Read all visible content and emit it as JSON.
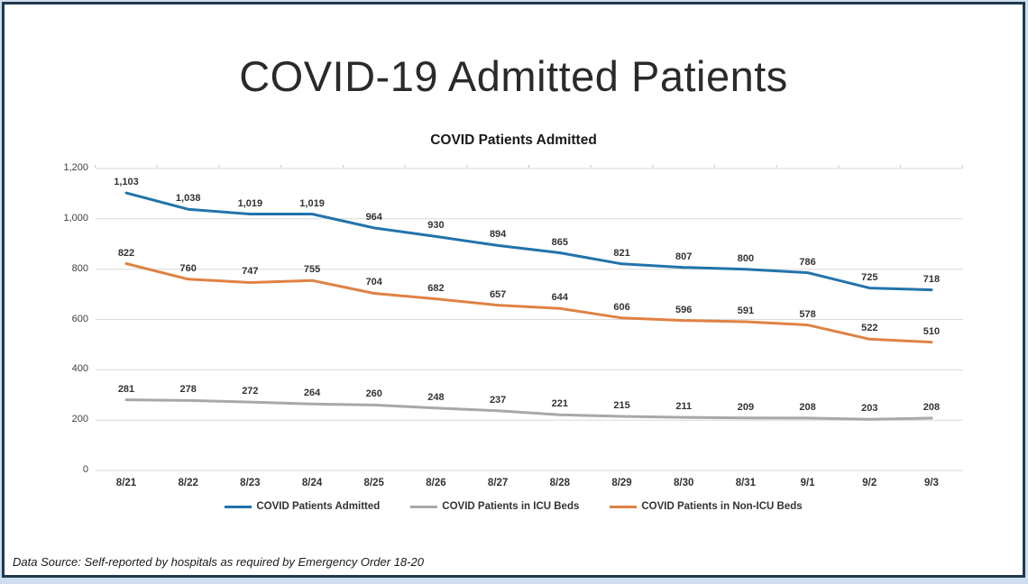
{
  "title": "COVID-19 Admitted Patients",
  "source_note": "Data Source: Self-reported by hospitals as required by Emergency Order 18-20",
  "colors": {
    "page_background": "#cfdeee",
    "card_border": "#20394f",
    "gridline": "#d9d9d9",
    "tick": "#c6c6c6",
    "label_text": "#333333",
    "series_admitted": "#2273ab",
    "series_icu": "#a8a8a8",
    "series_non_icu": "#df8244"
  },
  "chart_data": {
    "type": "line",
    "title": "COVID Patients Admitted",
    "categories": [
      "8/21",
      "8/22",
      "8/23",
      "8/24",
      "8/25",
      "8/26",
      "8/27",
      "8/28",
      "8/29",
      "8/30",
      "8/31",
      "9/1",
      "9/2",
      "9/3"
    ],
    "series": [
      {
        "name": "COVID Patients Admitted",
        "color": "#2273ab",
        "values": [
          1103,
          1038,
          1019,
          1019,
          964,
          930,
          894,
          865,
          821,
          807,
          800,
          786,
          725,
          718
        ]
      },
      {
        "name": "COVID Patients in ICU Beds",
        "color": "#a8a8a8",
        "values": [
          281,
          278,
          272,
          264,
          260,
          248,
          237,
          221,
          215,
          211,
          209,
          208,
          203,
          208
        ]
      },
      {
        "name": "COVID Patients in Non-ICU Beds",
        "color": "#df8244",
        "values": [
          822,
          760,
          747,
          755,
          704,
          682,
          657,
          644,
          606,
          596,
          591,
          578,
          522,
          510
        ]
      }
    ],
    "legend_order": [
      0,
      1,
      2
    ],
    "legend_position": "bottom",
    "data_labels": true,
    "grid": true,
    "ylim": [
      0,
      1200
    ],
    "ytick_step": 200,
    "yticks": [
      "1,200",
      "1,000",
      "800",
      "600",
      "400",
      "200",
      "0"
    ],
    "xlabel": "",
    "ylabel": ""
  }
}
